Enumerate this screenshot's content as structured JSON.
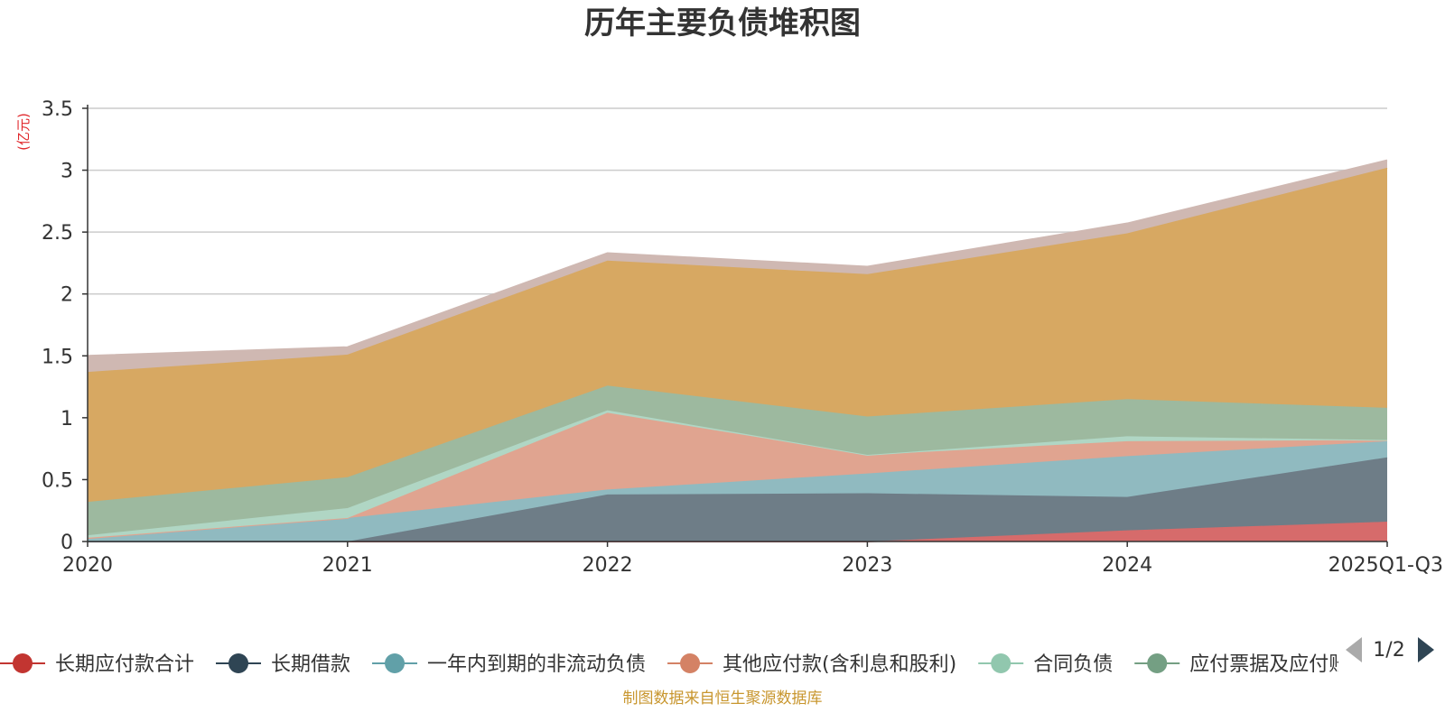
{
  "source_note": "制图数据来自恒生聚源数据库",
  "chart_data": {
    "type": "area",
    "stacked": true,
    "title": "历年主要负债堆积图",
    "unit": "(亿元)",
    "categories": [
      "2020",
      "2021",
      "2022",
      "2023",
      "2024",
      "2025Q1-Q3"
    ],
    "ylim": [
      0,
      3.5
    ],
    "yticks": [
      0,
      0.5,
      1,
      1.5,
      2,
      2.5,
      3,
      3.5
    ],
    "grid": true,
    "legend_position": "bottom",
    "legend_page": "1/2",
    "series": [
      {
        "name": "长期应付款合计",
        "color": "#c23531",
        "area_color": "#d66b6b",
        "values": [
          0,
          0,
          0,
          0,
          0.09,
          0.16
        ]
      },
      {
        "name": "长期借款",
        "color": "#2f4554",
        "area_color": "#6e7d87",
        "values": [
          0,
          0,
          0.38,
          0.39,
          0.27,
          0.52
        ]
      },
      {
        "name": "一年内到期的非流动负债",
        "color": "#61a0a8",
        "area_color": "#90bac0",
        "values": [
          0.02,
          0.19,
          0.04,
          0.16,
          0.33,
          0.13
        ]
      },
      {
        "name": "其他应付款(含利息和股利)",
        "color": "#d48265",
        "area_color": "#e0a490",
        "values": [
          0.01,
          0,
          0.62,
          0.15,
          0.12,
          0.01
        ]
      },
      {
        "name": "合同负债",
        "color": "#91c7ae",
        "area_color": "#b0d6c4",
        "values": [
          0.02,
          0.08,
          0.02,
          0,
          0.04,
          0
        ]
      },
      {
        "name": "应付票据及应付账款",
        "color": "#749f83",
        "area_color": "#9db99f",
        "values": [
          0.27,
          0.25,
          0.2,
          0.31,
          0.3,
          0.26
        ]
      },
      {
        "name": "",
        "color": "#ca8622",
        "area_color": "#d7a862",
        "values": [
          1.05,
          0.99,
          1.01,
          1.15,
          1.34,
          1.94
        ]
      },
      {
        "name": "",
        "color": "#bda29a",
        "area_color": "#cfb8b2",
        "values": [
          0.13,
          0.06,
          0.06,
          0.06,
          0.08,
          0.06
        ]
      }
    ]
  }
}
